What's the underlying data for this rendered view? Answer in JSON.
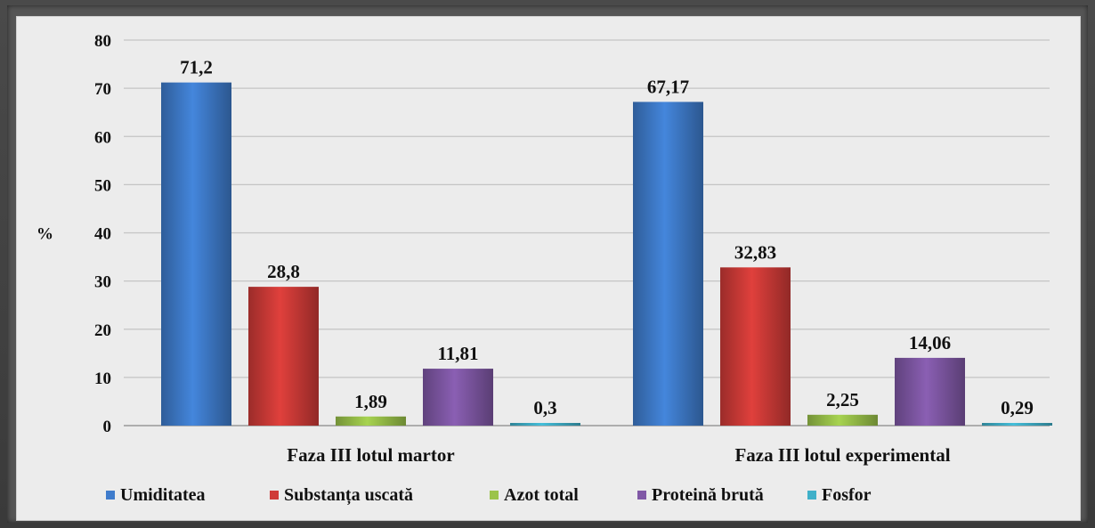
{
  "chart_data": {
    "type": "bar",
    "ylabel": "%",
    "ylim": [
      0,
      80
    ],
    "yticks": [
      "0",
      "10",
      "20",
      "30",
      "40",
      "50",
      "60",
      "70",
      "80"
    ],
    "grid": true,
    "legend_position": "bottom",
    "categories": [
      "Faza III lotul martor",
      "Faza III lotul experimental"
    ],
    "series": [
      {
        "name": "Umiditatea",
        "values": [
          71.2,
          67.17
        ],
        "labels": [
          "71,2",
          "67,17"
        ],
        "color": "#3f7ccc"
      },
      {
        "name": "Substanța uscată",
        "values": [
          28.8,
          32.83
        ],
        "labels": [
          "28,8",
          "32,83"
        ],
        "color": "#cf3b38"
      },
      {
        "name": "Azot total",
        "values": [
          1.89,
          2.25
        ],
        "labels": [
          "1,89",
          "2,25"
        ],
        "color": "#9bc34a"
      },
      {
        "name": "Proteină brută",
        "values": [
          11.81,
          14.06
        ],
        "labels": [
          "11,81",
          "14,06"
        ],
        "color": "#8058a6"
      },
      {
        "name": "Fosfor",
        "values": [
          0.3,
          0.29
        ],
        "labels": [
          "0,3",
          "0,29"
        ],
        "color": "#3fb0c9"
      }
    ]
  }
}
